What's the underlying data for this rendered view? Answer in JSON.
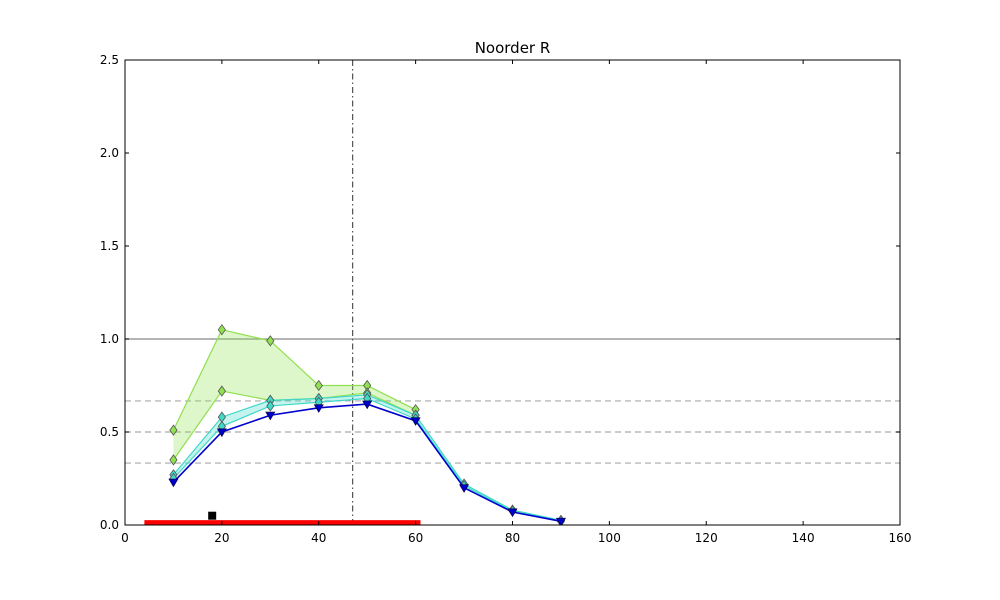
{
  "chart_data": {
    "type": "line",
    "title": "Noorder R",
    "xlabel": "",
    "ylabel": "",
    "xlim": [
      0,
      160
    ],
    "ylim": [
      0,
      2.5
    ],
    "xticks": [
      0,
      20,
      40,
      60,
      80,
      100,
      120,
      140,
      160
    ],
    "yticks": [
      0.0,
      0.5,
      1.0,
      1.5,
      2.0,
      2.5
    ],
    "grid": false,
    "reference_lines": {
      "solid_y": 1.0,
      "dashed_y": [
        0.667,
        0.5,
        0.333
      ],
      "vertical_dashdot_x": 47
    },
    "bands": [
      {
        "color": "#90e050",
        "x": [
          10,
          20,
          30,
          40,
          50,
          60
        ],
        "upper": [
          0.51,
          1.05,
          0.99,
          0.75,
          0.75,
          0.62
        ],
        "lower": [
          0.35,
          0.72,
          0.67,
          0.68,
          0.71,
          0.59
        ]
      },
      {
        "color": "#40d8c8",
        "x": [
          10,
          20,
          30,
          40,
          50,
          60,
          70,
          80,
          90
        ],
        "upper": [
          0.27,
          0.58,
          0.67,
          0.68,
          0.7,
          0.59,
          0.22,
          0.08,
          0.025
        ],
        "lower": [
          0.25,
          0.53,
          0.64,
          0.66,
          0.68,
          0.57,
          0.21,
          0.075,
          0.02
        ]
      }
    ],
    "series": [
      {
        "color": "#0000cc",
        "marker": "triangle-down",
        "x": [
          10,
          20,
          30,
          40,
          50,
          60,
          70,
          80,
          90
        ],
        "y": [
          0.23,
          0.5,
          0.59,
          0.63,
          0.65,
          0.56,
          0.2,
          0.07,
          0.02
        ]
      }
    ],
    "annotations": {
      "red_bar": {
        "x_start": 4,
        "x_end": 61,
        "y": 0.01,
        "color": "#ff0000"
      },
      "black_square": {
        "x": 18,
        "y": 0.05,
        "color": "#000000"
      }
    }
  }
}
